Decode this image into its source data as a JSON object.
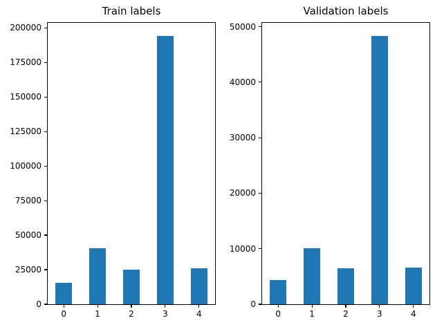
{
  "figure": {
    "background": "#ffffff",
    "bar_color": "#1f77b4",
    "axis_color": "#000000"
  },
  "chart_data": [
    {
      "type": "bar",
      "title": "Train labels",
      "xlabel": "",
      "ylabel": "",
      "categories": [
        "0",
        "1",
        "2",
        "3",
        "4"
      ],
      "values": [
        15500,
        40500,
        25000,
        194000,
        26000
      ],
      "ylim": [
        0,
        203700
      ],
      "yticks": [
        0,
        25000,
        50000,
        75000,
        100000,
        125000,
        150000,
        175000,
        200000
      ],
      "bar_width": 0.5,
      "grid": false,
      "legend": "none"
    },
    {
      "type": "bar",
      "title": "Validation labels",
      "xlabel": "",
      "ylabel": "",
      "categories": [
        "0",
        "1",
        "2",
        "3",
        "4"
      ],
      "values": [
        4300,
        10100,
        6500,
        48300,
        6600
      ],
      "ylim": [
        0,
        50700
      ],
      "yticks": [
        0,
        10000,
        20000,
        30000,
        40000,
        50000
      ],
      "bar_width": 0.5,
      "grid": false,
      "legend": "none"
    }
  ]
}
